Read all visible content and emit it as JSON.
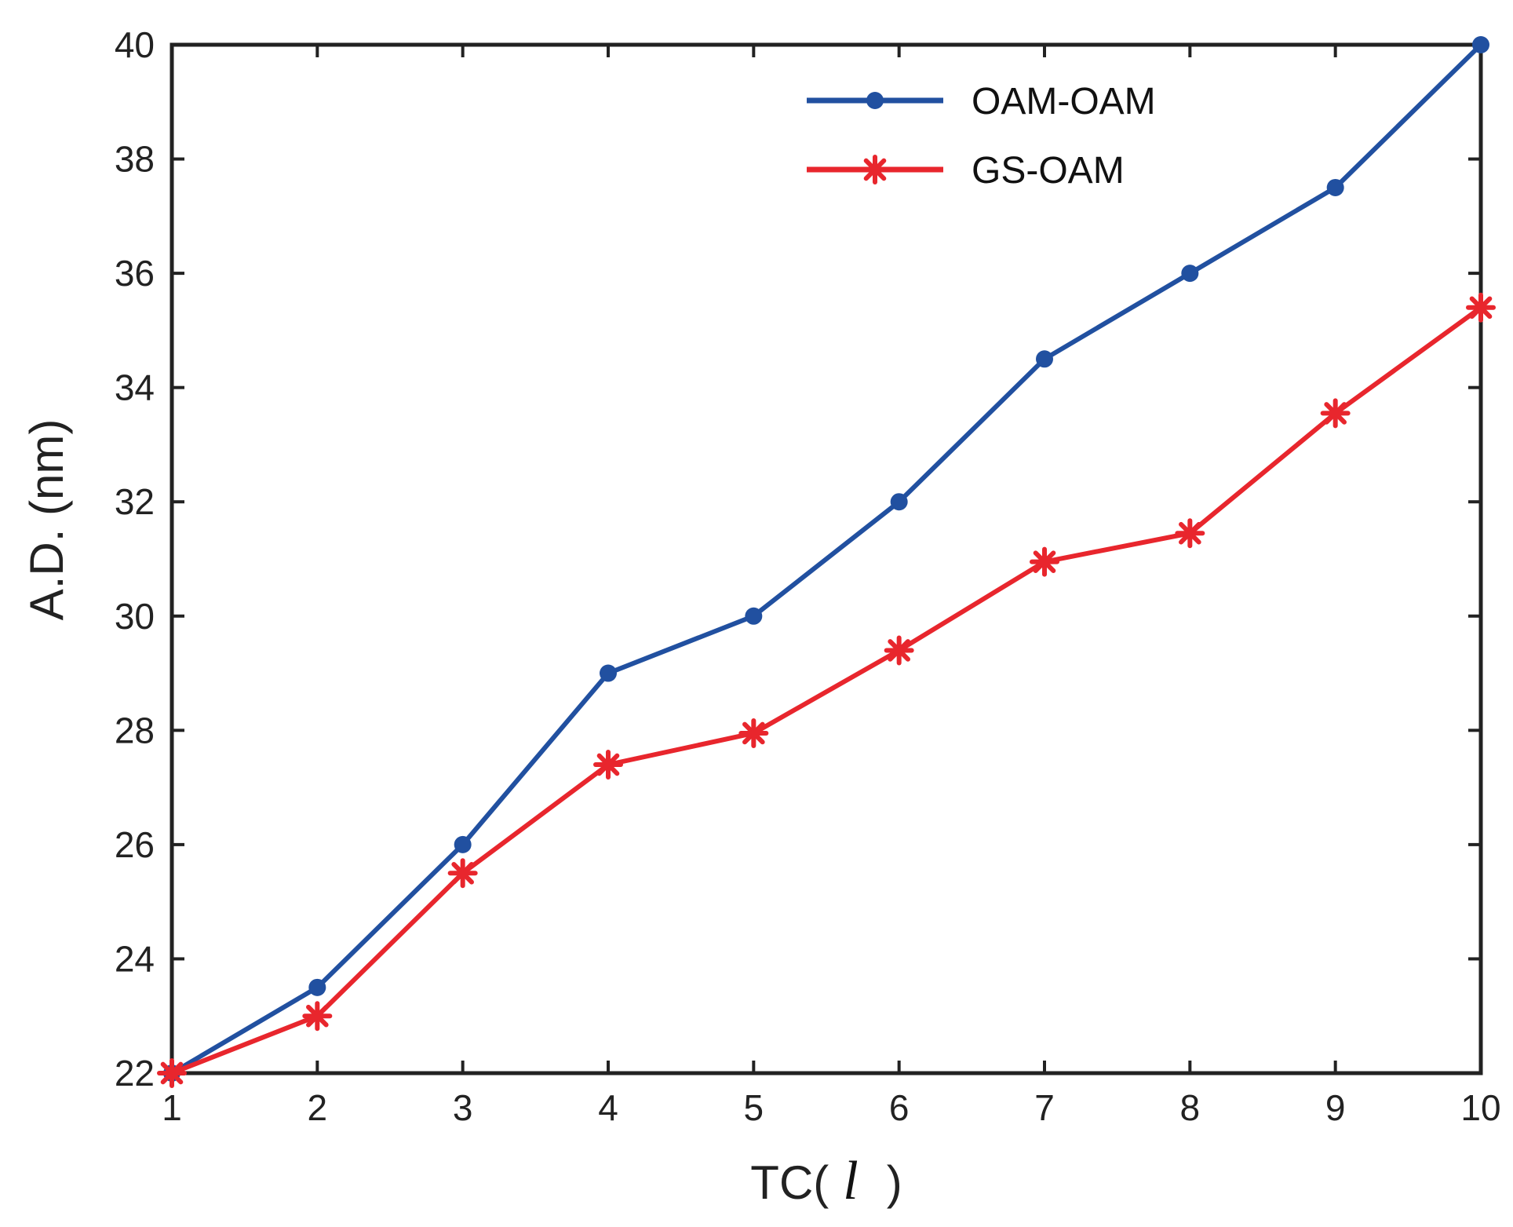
{
  "chart_data": {
    "type": "line",
    "title": "",
    "xlabel_prefix": "TC(",
    "xlabel_var": "l",
    "xlabel_suffix": ")",
    "ylabel": "A.D. (nm)",
    "xlim": [
      1,
      10
    ],
    "ylim": [
      22,
      40
    ],
    "xticks": [
      "1",
      "2",
      "3",
      "4",
      "5",
      "6",
      "7",
      "8",
      "9",
      "10"
    ],
    "yticks": [
      "22",
      "24",
      "26",
      "28",
      "30",
      "32",
      "34",
      "36",
      "38",
      "40"
    ],
    "grid": false,
    "legend_position": "top-right",
    "series": [
      {
        "name": "OAM-OAM",
        "color": "#2150A0",
        "marker": "circle",
        "x": [
          1,
          2,
          3,
          4,
          5,
          6,
          7,
          8,
          9,
          10
        ],
        "values": [
          22.0,
          23.5,
          26.0,
          29.0,
          30.0,
          32.0,
          34.5,
          36.0,
          37.5,
          40.0
        ]
      },
      {
        "name": "GS-OAM",
        "color": "#E8262D",
        "marker": "asterisk",
        "x": [
          1,
          2,
          3,
          4,
          5,
          6,
          7,
          8,
          9,
          10
        ],
        "values": [
          22.0,
          23.0,
          25.5,
          27.4,
          27.95,
          29.4,
          30.95,
          31.45,
          33.55,
          35.4
        ]
      }
    ]
  }
}
